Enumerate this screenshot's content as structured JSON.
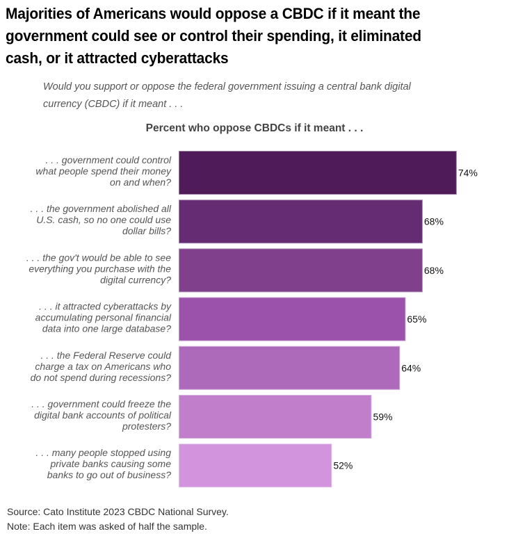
{
  "title_lines": [
    "Majorities of Americans would oppose a CBDC if it meant the",
    "government could see or control their spending, it eliminated",
    "cash, or it attracted cyberattacks"
  ],
  "subtitle_lines": [
    "Would you support or oppose the federal government issuing a central bank digital",
    "currency (CBDC) if it meant . . ."
  ],
  "footer": {
    "source": "Source: Cato Institute 2023 CBDC National Survey.",
    "note": "Note: Each item was asked of half the sample."
  },
  "chart_data": {
    "type": "bar",
    "orientation": "horizontal",
    "title": "Percent who oppose CBDCs if it meant . . .",
    "xlabel": "",
    "ylabel": "",
    "xlim": [
      25,
      75
    ],
    "grid": false,
    "value_suffix": "%",
    "categories": [
      [
        ". . . government could control",
        "what people spend their money",
        "on and when?"
      ],
      [
        ". . . the government abolished all",
        "U.S. cash, so no one could use",
        "dollar bills?"
      ],
      [
        ". . . the gov't would be able to see",
        "everything you purchase with the",
        "digital currency?"
      ],
      [
        ". . . it attracted cyberattacks by",
        "accumulating personal financial",
        "data into one large database?"
      ],
      [
        ". . . the Federal Reserve could",
        "charge a tax on Americans who",
        "do not spend during recessions?"
      ],
      [
        ". . . government could freeze the",
        "digital bank accounts of political",
        "protesters?"
      ],
      [
        ". . . many people stopped using",
        "private banks causing some",
        "banks to go out of business?"
      ]
    ],
    "values": [
      74,
      68,
      68,
      65,
      64,
      59,
      52
    ],
    "colors": [
      "#4f1b59",
      "#652b73",
      "#80408c",
      "#9a52aa",
      "#ad69ba",
      "#c07ecb",
      "#d194dd"
    ],
    "border_colors": [
      "#9d7fa5",
      "#a688ae",
      "#b08fb8",
      "#c49ccd",
      "#cfacd6",
      "#d7b5de",
      "#e4c3ea"
    ]
  }
}
